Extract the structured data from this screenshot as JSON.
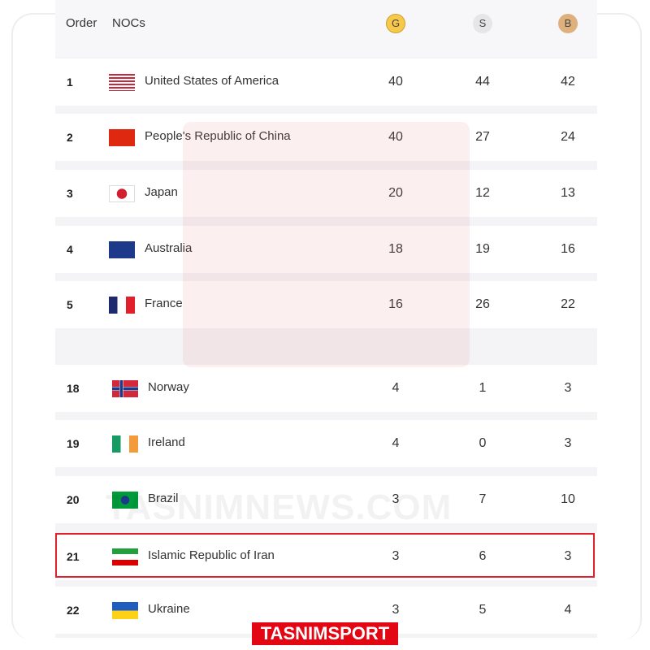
{
  "header": {
    "order": "Order",
    "nocs": "NOCs",
    "gold": "G",
    "silver": "S",
    "bronze": "B"
  },
  "colors": {
    "gold": "#f7c84a",
    "silver": "#e6e6e8",
    "bronze": "#deb07c",
    "highlight": "#e0202a",
    "brand": "#e30613"
  },
  "rows": [
    {
      "order": "1",
      "name": "United States of America",
      "flag": "usa",
      "gold": "40",
      "silver": "44",
      "bronze": "42"
    },
    {
      "order": "2",
      "name": "People's Republic of China",
      "flag": "china",
      "gold": "40",
      "silver": "27",
      "bronze": "24"
    },
    {
      "order": "3",
      "name": "Japan",
      "flag": "japan",
      "gold": "20",
      "silver": "12",
      "bronze": "13"
    },
    {
      "order": "4",
      "name": "Australia",
      "flag": "australia",
      "gold": "18",
      "silver": "19",
      "bronze": "16"
    },
    {
      "order": "5",
      "name": "France",
      "flag": "france",
      "gold": "16",
      "silver": "26",
      "bronze": "22"
    },
    {
      "order": "18",
      "name": "Norway",
      "flag": "norway",
      "gold": "4",
      "silver": "1",
      "bronze": "3"
    },
    {
      "order": "19",
      "name": "Ireland",
      "flag": "ireland",
      "gold": "4",
      "silver": "0",
      "bronze": "3"
    },
    {
      "order": "20",
      "name": "Brazil",
      "flag": "brazil",
      "gold": "3",
      "silver": "7",
      "bronze": "10"
    },
    {
      "order": "21",
      "name": "Islamic Republic of Iran",
      "flag": "iran",
      "gold": "3",
      "silver": "6",
      "bronze": "3",
      "highlighted": true
    },
    {
      "order": "22",
      "name": "Ukraine",
      "flag": "ukraine",
      "gold": "3",
      "silver": "5",
      "bronze": "4"
    }
  ],
  "watermark": "TASNIMNEWS.COM",
  "badge": "TASNIMSPORT"
}
